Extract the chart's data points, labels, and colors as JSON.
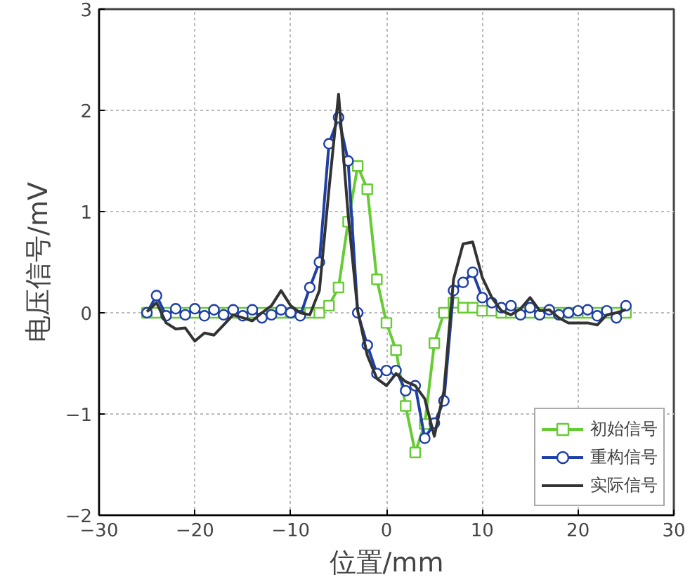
{
  "chart_data": {
    "type": "line",
    "xlabel": "位置/mm",
    "ylabel": "电压信号/mV",
    "x": [
      -25,
      -24,
      -23,
      -22,
      -21,
      -20,
      -19,
      -18,
      -17,
      -16,
      -15,
      -14,
      -13,
      -12,
      -11,
      -10,
      -9,
      -8,
      -7,
      -6,
      -5,
      -4,
      -3,
      -2,
      -1,
      0,
      1,
      2,
      3,
      4,
      5,
      6,
      7,
      8,
      9,
      10,
      11,
      12,
      13,
      14,
      15,
      16,
      17,
      18,
      19,
      20,
      21,
      22,
      23,
      24,
      25
    ],
    "series": [
      {
        "name": "初始信号",
        "color": "#66cc33",
        "marker": "square",
        "values": [
          0,
          0,
          0,
          0,
          0,
          0,
          0,
          0,
          0,
          0,
          0,
          0,
          0,
          0,
          0,
          0,
          0,
          0,
          0,
          0.07,
          0.25,
          0.9,
          1.45,
          1.22,
          0.33,
          -0.1,
          -0.37,
          -0.92,
          -1.38,
          -1.1,
          -0.3,
          0,
          0.1,
          0.05,
          0.05,
          0.02,
          0.02,
          0,
          0,
          0,
          0,
          0,
          0,
          0,
          0,
          0,
          0,
          0,
          0,
          0,
          0
        ]
      },
      {
        "name": "重构信号",
        "color": "#1f3fa8",
        "marker": "circle",
        "values": [
          0,
          0.17,
          -0.03,
          0.04,
          -0.02,
          0.04,
          -0.03,
          0.03,
          -0.02,
          0.03,
          -0.03,
          0.03,
          -0.05,
          -0.02,
          0.03,
          0,
          -0.03,
          0.25,
          0.5,
          1.67,
          1.93,
          1.5,
          0,
          -0.32,
          -0.6,
          -0.57,
          -0.57,
          -0.77,
          -0.72,
          -1.24,
          -1.09,
          -0.87,
          0.22,
          0.3,
          0.4,
          0.15,
          0.1,
          0.05,
          0.07,
          -0.02,
          0.05,
          -0.02,
          0.03,
          -0.02,
          0,
          0.02,
          0.03,
          -0.03,
          0.02,
          -0.05,
          0.07
        ]
      },
      {
        "name": "实际信号",
        "color": "#333333",
        "marker": "none",
        "values": [
          0.01,
          0.1,
          -0.1,
          -0.16,
          -0.15,
          -0.28,
          -0.2,
          -0.22,
          -0.12,
          -0.02,
          -0.05,
          -0.08,
          0,
          0.07,
          0.22,
          0.07,
          0,
          -0.02,
          0.22,
          1.22,
          2.16,
          0.97,
          0.02,
          -0.42,
          -0.65,
          -0.72,
          -0.6,
          -0.68,
          -0.72,
          -0.85,
          -1.22,
          -0.77,
          0.33,
          0.68,
          0.7,
          0.35,
          0.15,
          0.02,
          -0.02,
          0.04,
          0.15,
          0.02,
          0.03,
          -0.05,
          -0.1,
          -0.1,
          -0.1,
          -0.12,
          -0.02,
          0,
          0.03
        ]
      }
    ],
    "xlim": [
      -30,
      30
    ],
    "xticks": [
      -30,
      -20,
      -10,
      0,
      10,
      20,
      30
    ],
    "ylim": [
      -2,
      3
    ],
    "yticks": [
      -2,
      -1,
      0,
      1,
      2,
      3
    ],
    "grid": true,
    "legend": "bottom right",
    "line_style": "solid"
  }
}
